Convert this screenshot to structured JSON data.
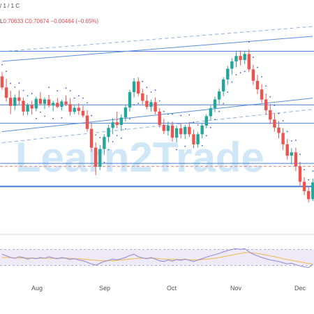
{
  "legend": {
    "line1": "/ 1 / 1 C",
    "line2_prefix": "L",
    "low": "0.70633",
    "close": "C0.70674",
    "change": "−0.00464 (−0.65%)"
  },
  "watermark": "Learn2Trade",
  "months": [
    "Aug",
    "Sep",
    "Oct",
    "Nov",
    "Dec"
  ],
  "colors": {
    "up": "#26a69a",
    "down": "#ef5350",
    "channel": "#5b8fd9",
    "level": "#4a7fd6",
    "sar": "#3060d0",
    "rsi": "#8a86d8",
    "rsi_ma": "#f0b84a",
    "rsi_band": "#eeeaf8",
    "price_line": "#e58080"
  },
  "chart_data": {
    "type": "candlestick",
    "ohlc": [
      [
        0.7435,
        0.7448,
        0.7395,
        0.7402
      ],
      [
        0.7402,
        0.7428,
        0.736,
        0.7371
      ],
      [
        0.7371,
        0.7392,
        0.7322,
        0.7347
      ],
      [
        0.7347,
        0.7381,
        0.7334,
        0.7372
      ],
      [
        0.7372,
        0.7393,
        0.735,
        0.7362
      ],
      [
        0.7362,
        0.7371,
        0.7318,
        0.733
      ],
      [
        0.733,
        0.7355,
        0.7319,
        0.7349
      ],
      [
        0.7349,
        0.7362,
        0.7321,
        0.7339
      ],
      [
        0.7339,
        0.7374,
        0.7331,
        0.7368
      ],
      [
        0.7368,
        0.7388,
        0.735,
        0.7353
      ],
      [
        0.7353,
        0.7372,
        0.7338,
        0.7366
      ],
      [
        0.7366,
        0.738,
        0.7342,
        0.7348
      ],
      [
        0.7348,
        0.7362,
        0.7331,
        0.7356
      ],
      [
        0.7356,
        0.737,
        0.734,
        0.7344
      ],
      [
        0.7344,
        0.7365,
        0.7333,
        0.736
      ],
      [
        0.736,
        0.7378,
        0.7346,
        0.7352
      ],
      [
        0.7352,
        0.737,
        0.7318,
        0.7329
      ],
      [
        0.7329,
        0.7348,
        0.7322,
        0.7341
      ],
      [
        0.7341,
        0.7355,
        0.732,
        0.7332
      ],
      [
        0.7332,
        0.7348,
        0.7312,
        0.7318
      ],
      [
        0.7318,
        0.7334,
        0.727,
        0.7278
      ],
      [
        0.7278,
        0.7296,
        0.721,
        0.7222
      ],
      [
        0.7222,
        0.7238,
        0.714,
        0.7165
      ],
      [
        0.7165,
        0.723,
        0.7155,
        0.7218
      ],
      [
        0.7218,
        0.7262,
        0.72,
        0.7254
      ],
      [
        0.7254,
        0.729,
        0.7238,
        0.7281
      ],
      [
        0.7281,
        0.731,
        0.7262,
        0.7298
      ],
      [
        0.7298,
        0.733,
        0.728,
        0.729
      ],
      [
        0.729,
        0.7322,
        0.7272,
        0.7312
      ],
      [
        0.7312,
        0.735,
        0.73,
        0.7342
      ],
      [
        0.7342,
        0.7395,
        0.733,
        0.7388
      ],
      [
        0.7388,
        0.743,
        0.7372,
        0.742
      ],
      [
        0.742,
        0.7432,
        0.7376,
        0.7384
      ],
      [
        0.7384,
        0.7398,
        0.7352,
        0.7362
      ],
      [
        0.7362,
        0.738,
        0.7336,
        0.7344
      ],
      [
        0.7344,
        0.7366,
        0.733,
        0.7358
      ],
      [
        0.7358,
        0.7372,
        0.7322,
        0.733
      ],
      [
        0.733,
        0.734,
        0.7282,
        0.729
      ],
      [
        0.729,
        0.7308,
        0.7262,
        0.7272
      ],
      [
        0.7272,
        0.73,
        0.7258,
        0.7288
      ],
      [
        0.7288,
        0.73,
        0.724,
        0.7252
      ],
      [
        0.7252,
        0.7288,
        0.7238,
        0.728
      ],
      [
        0.728,
        0.7296,
        0.725,
        0.7262
      ],
      [
        0.7262,
        0.729,
        0.7248,
        0.7284
      ],
      [
        0.7284,
        0.7298,
        0.7254,
        0.7262
      ],
      [
        0.7262,
        0.7276,
        0.722,
        0.7232
      ],
      [
        0.7232,
        0.7268,
        0.7222,
        0.7262
      ],
      [
        0.7262,
        0.7296,
        0.725,
        0.7288
      ],
      [
        0.7288,
        0.7322,
        0.728,
        0.7316
      ],
      [
        0.7316,
        0.7348,
        0.7304,
        0.734
      ],
      [
        0.734,
        0.7374,
        0.7328,
        0.7366
      ],
      [
        0.7366,
        0.7398,
        0.7352,
        0.739
      ],
      [
        0.739,
        0.7432,
        0.7376,
        0.7426
      ],
      [
        0.7426,
        0.7466,
        0.741,
        0.7458
      ],
      [
        0.7458,
        0.749,
        0.744,
        0.748
      ],
      [
        0.748,
        0.7508,
        0.7462,
        0.7496
      ],
      [
        0.7496,
        0.7512,
        0.7468,
        0.7484
      ],
      [
        0.7484,
        0.751,
        0.7472,
        0.7502
      ],
      [
        0.7502,
        0.7516,
        0.7448,
        0.7456
      ],
      [
        0.7456,
        0.747,
        0.741,
        0.7422
      ],
      [
        0.7422,
        0.744,
        0.7382,
        0.7396
      ],
      [
        0.7396,
        0.7412,
        0.7356,
        0.7366
      ],
      [
        0.7366,
        0.7384,
        0.732,
        0.7334
      ],
      [
        0.7334,
        0.7352,
        0.7292,
        0.7306
      ],
      [
        0.7306,
        0.7326,
        0.727,
        0.7282
      ],
      [
        0.7282,
        0.7302,
        0.725,
        0.7266
      ],
      [
        0.7266,
        0.728,
        0.7216,
        0.7232
      ],
      [
        0.7232,
        0.7248,
        0.7186,
        0.7198
      ],
      [
        0.7198,
        0.722,
        0.7172,
        0.7208
      ],
      [
        0.7208,
        0.7222,
        0.7152,
        0.7166
      ],
      [
        0.7166,
        0.718,
        0.7108,
        0.712
      ],
      [
        0.712,
        0.7134,
        0.708,
        0.7092
      ],
      [
        0.7092,
        0.7104,
        0.7058,
        0.7068
      ],
      [
        0.7068,
        0.713,
        0.7062,
        0.7118
      ]
    ],
    "rsi": [
      58,
      54,
      50,
      48,
      52,
      50,
      46,
      49,
      47,
      50,
      48,
      52,
      49,
      47,
      50,
      48,
      45,
      47,
      44,
      42,
      38,
      34,
      31,
      36,
      40,
      43,
      46,
      44,
      47,
      50,
      55,
      58,
      52,
      49,
      47,
      50,
      46,
      42,
      40,
      44,
      41,
      45,
      43,
      46,
      43,
      40,
      44,
      47,
      51,
      54,
      57,
      60,
      64,
      67,
      70,
      72,
      70,
      72,
      64,
      58,
      54,
      50,
      47,
      44,
      42,
      40,
      37,
      34,
      36,
      32,
      29,
      27,
      25,
      33
    ],
    "rsi_ma": [
      50,
      50,
      50,
      49,
      49,
      49,
      49,
      48,
      48,
      48,
      48,
      48,
      48,
      48,
      48,
      48,
      48,
      47,
      47,
      46,
      45,
      44,
      43,
      42,
      42,
      42,
      42,
      43,
      44,
      45,
      46,
      47,
      48,
      48,
      48,
      48,
      48,
      47,
      46,
      46,
      45,
      45,
      45,
      45,
      44,
      44,
      44,
      45,
      46,
      47,
      48,
      50,
      52,
      54,
      56,
      58,
      60,
      62,
      62,
      61,
      60,
      58,
      56,
      54,
      52,
      50,
      47,
      45,
      43,
      41,
      39,
      37,
      35,
      34
    ],
    "channel_upper": [
      [
        0,
        0.748
      ],
      [
        73,
        0.7555
      ]
    ],
    "channel_lower": [
      [
        0,
        0.727
      ],
      [
        73,
        0.737
      ]
    ],
    "levels": [
      0.751,
      0.735,
      0.7295,
      0.7175
    ],
    "support": 0.7106,
    "reference": 0.7166,
    "ylim": [
      0.7,
      0.758
    ],
    "rsi_levels": [
      70,
      30
    ]
  }
}
